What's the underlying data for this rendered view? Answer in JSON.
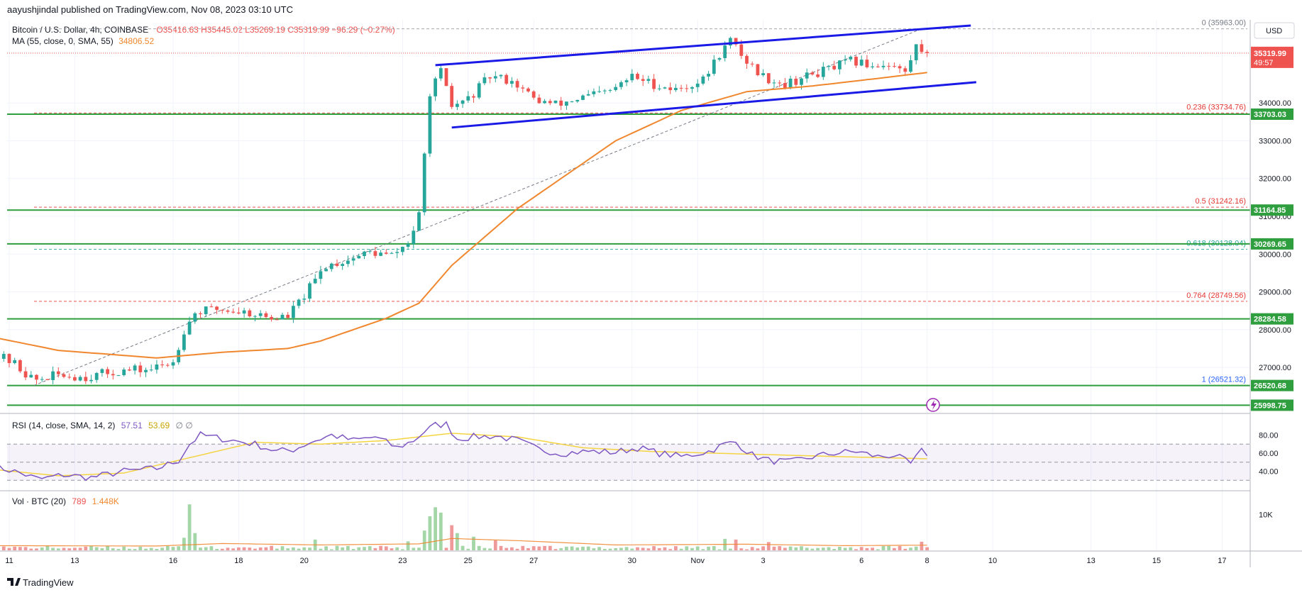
{
  "header": {
    "published": "aayushjindal published on TradingView.com, Nov 08, 2023 03:10 UTC"
  },
  "legend": {
    "symbol": "Bitcoin / U.S. Dollar, 4h, COINBASE",
    "ohlc": "O35416.63 H35445.02 L35269.19 C35319.99 −96.29 (−0.27%)",
    "ma_label": "MA (55, close, 0, SMA, 55)",
    "ma_value": "34806.52",
    "rsi_label": "RSI (14, close, SMA, 14, 2)",
    "rsi_value": "57.51",
    "rsi_sma_value": "53.69",
    "rsi_extra": "∅ ∅",
    "vol_label": "Vol · BTC (20)",
    "vol_value": "789",
    "vol_ma_value": "1.448K"
  },
  "colors": {
    "up": "#26a69a",
    "down": "#ef5350",
    "up_vol": "#a5d6a7",
    "down_vol": "#ef9a9a",
    "ma": "#f0872e",
    "channel": "#1a1ae6",
    "support": "#2e9e3e",
    "fib_red": "#e53935",
    "fib_green": "#26a69a",
    "fib_blue": "#2962ff",
    "fib_gray": "#787b86",
    "rsi": "#7e57c2",
    "rsi_sma": "#f5d442",
    "price_tag": "#ef5350"
  },
  "footer": {
    "brand": "TradingView"
  },
  "chart_data": {
    "type": "candlestick",
    "symbol": "Bitcoin / U.S. Dollar",
    "interval": "4h",
    "exchange": "COINBASE",
    "currency": "USD",
    "y_ticks": [
      27000,
      28000,
      29000,
      30000,
      31000,
      32000,
      33000,
      34000
    ],
    "y_tick_labels": [
      "27000.00",
      "28000.00",
      "29000.00",
      "30000.00",
      "31000.00",
      "32000.00",
      "33000.00",
      "34000.00"
    ],
    "ylim": [
      25800,
      36200
    ],
    "x_tick_labels": [
      "11",
      "13",
      "16",
      "18",
      "20",
      "23",
      "25",
      "27",
      "30",
      "Nov",
      "3",
      "6",
      "8",
      "10",
      "13",
      "15",
      "17"
    ],
    "x_tick_dates": [
      "2023-10-11",
      "2023-10-13",
      "2023-10-16",
      "2023-10-18",
      "2023-10-20",
      "2023-10-23",
      "2023-10-25",
      "2023-10-27",
      "2023-10-30",
      "2023-11-01",
      "2023-11-03",
      "2023-11-06",
      "2023-11-08",
      "2023-11-10",
      "2023-11-13",
      "2023-11-15",
      "2023-11-17"
    ],
    "price_path": [
      [
        "2023-10-10 12:00",
        27400
      ],
      [
        "2023-10-11 06:00",
        27150
      ],
      [
        "2023-10-11 22:00",
        26650
      ],
      [
        "2023-10-12 16:00",
        26800
      ],
      [
        "2023-10-13 12:00",
        26750
      ],
      [
        "2023-10-14 12:00",
        26900
      ],
      [
        "2023-10-15 12:00",
        26950
      ],
      [
        "2023-10-16 04:00",
        27150
      ],
      [
        "2023-10-16 12:00",
        28000
      ],
      [
        "2023-10-16 20:00",
        28450
      ],
      [
        "2023-10-17 12:00",
        28550
      ],
      [
        "2023-10-18 12:00",
        28450
      ],
      [
        "2023-10-19 04:00",
        28300
      ],
      [
        "2023-10-19 16:00",
        28350
      ],
      [
        "2023-10-20 04:00",
        28900
      ],
      [
        "2023-10-20 20:00",
        29700
      ],
      [
        "2023-10-21 12:00",
        29850
      ],
      [
        "2023-10-22 04:00",
        30050
      ],
      [
        "2023-10-22 20:00",
        29950
      ],
      [
        "2023-10-23 08:00",
        30300
      ],
      [
        "2023-10-23 16:00",
        31000
      ],
      [
        "2023-10-23 20:00",
        32600
      ],
      [
        "2023-10-24 00:00",
        34300
      ],
      [
        "2023-10-24 08:00",
        34800
      ],
      [
        "2023-10-24 16:00",
        33900
      ],
      [
        "2023-10-25 04:00",
        34100
      ],
      [
        "2023-10-25 20:00",
        34700
      ],
      [
        "2023-10-26 12:00",
        34600
      ],
      [
        "2023-10-27 04:00",
        34100
      ],
      [
        "2023-10-27 20:00",
        33950
      ],
      [
        "2023-10-28 16:00",
        34150
      ],
      [
        "2023-10-29 12:00",
        34300
      ],
      [
        "2023-10-30 04:00",
        34700
      ],
      [
        "2023-10-30 20:00",
        34500
      ],
      [
        "2023-10-31 12:00",
        34350
      ],
      [
        "2023-11-01 08:00",
        34600
      ],
      [
        "2023-11-01 20:00",
        35300
      ],
      [
        "2023-11-02 04:00",
        35650
      ],
      [
        "2023-11-02 16:00",
        35100
      ],
      [
        "2023-11-03 04:00",
        34700
      ],
      [
        "2023-11-03 20:00",
        34500
      ],
      [
        "2023-11-04 12:00",
        34700
      ],
      [
        "2023-11-05 04:00",
        34900
      ],
      [
        "2023-11-05 20:00",
        35100
      ],
      [
        "2023-11-06 12:00",
        35000
      ],
      [
        "2023-11-07 00:00",
        35050
      ],
      [
        "2023-11-07 12:00",
        34800
      ],
      [
        "2023-11-07 20:00",
        35500
      ],
      [
        "2023-11-08 00:00",
        35416.63
      ],
      [
        "2023-11-08 03:10",
        35319.99
      ]
    ],
    "ma_path": [
      [
        "2023-10-10 12:00",
        27800
      ],
      [
        "2023-10-12 12:00",
        27450
      ],
      [
        "2023-10-15 12:00",
        27250
      ],
      [
        "2023-10-17 12:00",
        27400
      ],
      [
        "2023-10-19 12:00",
        27500
      ],
      [
        "2023-10-20 12:00",
        27700
      ],
      [
        "2023-10-22 12:00",
        28300
      ],
      [
        "2023-10-23 12:00",
        28700
      ],
      [
        "2023-10-24 12:00",
        29700
      ],
      [
        "2023-10-26 12:00",
        31200
      ],
      [
        "2023-10-29 12:00",
        33000
      ],
      [
        "2023-10-31 12:00",
        33800
      ],
      [
        "2023-11-02 12:00",
        34300
      ],
      [
        "2023-11-04 12:00",
        34450
      ],
      [
        "2023-11-06 12:00",
        34650
      ],
      [
        "2023-11-08 00:00",
        34806.52
      ]
    ],
    "fib_levels": [
      {
        "label": "0 (35963.00)",
        "value": 35963.0
      },
      {
        "label": "0.236 (33734.76)",
        "value": 33734.76
      },
      {
        "label": "0.5 (31242.16)",
        "value": 31242.16
      },
      {
        "label": "0.618 (30128.04)",
        "value": 30128.04
      },
      {
        "label": "0.764 (28749.56)",
        "value": 28749.56
      },
      {
        "label": "1 (26521.32)",
        "value": 26521.32
      }
    ],
    "support_levels": [
      {
        "label": "33703.03",
        "value": 33703.03
      },
      {
        "label": "31164.85",
        "value": 31164.85
      },
      {
        "label": "30269.65",
        "value": 30269.65
      },
      {
        "label": "28284.58",
        "value": 28284.58
      },
      {
        "label": "26520.68",
        "value": 26520.68
      },
      {
        "label": "25998.75",
        "value": 25998.75
      }
    ],
    "last_price": {
      "label": "35319.99",
      "value": 35319.99,
      "countdown": "49:57"
    },
    "channel": {
      "upper": [
        [
          "2023-10-24 00:00",
          35000
        ],
        [
          "2023-11-09 08:00",
          36050
        ]
      ],
      "lower": [
        [
          "2023-10-24 12:00",
          33350
        ],
        [
          "2023-11-09 12:00",
          34550
        ]
      ]
    },
    "rsi": {
      "ticks": [
        "40.00",
        "60.00",
        "80.00"
      ],
      "tick_values": [
        40,
        60,
        80
      ],
      "band": [
        30,
        70
      ],
      "ylim": [
        20,
        100
      ],
      "path": [
        [
          "2023-10-10 12:00",
          46
        ],
        [
          "2023-10-11 06:00",
          39
        ],
        [
          "2023-10-11 22:00",
          31
        ],
        [
          "2023-10-12 16:00",
          36
        ],
        [
          "2023-10-13 12:00",
          33
        ],
        [
          "2023-10-14 12:00",
          40
        ],
        [
          "2023-10-15 12:00",
          43
        ],
        [
          "2023-10-16 04:00",
          52
        ],
        [
          "2023-10-16 12:00",
          70
        ],
        [
          "2023-10-16 20:00",
          80
        ],
        [
          "2023-10-17 12:00",
          76
        ],
        [
          "2023-10-18 12:00",
          70
        ],
        [
          "2023-10-19 04:00",
          62
        ],
        [
          "2023-10-19 16:00",
          64
        ],
        [
          "2023-10-20 04:00",
          72
        ],
        [
          "2023-10-20 20:00",
          80
        ],
        [
          "2023-10-21 12:00",
          74
        ],
        [
          "2023-10-22 04:00",
          78
        ],
        [
          "2023-10-22 20:00",
          66
        ],
        [
          "2023-10-23 08:00",
          74
        ],
        [
          "2023-10-23 16:00",
          84
        ],
        [
          "2023-10-24 00:00",
          91
        ],
        [
          "2023-10-24 08:00",
          92
        ],
        [
          "2023-10-24 16:00",
          76
        ],
        [
          "2023-10-25 04:00",
          78
        ],
        [
          "2023-10-25 20:00",
          79
        ],
        [
          "2023-10-26 12:00",
          74
        ],
        [
          "2023-10-27 04:00",
          64
        ],
        [
          "2023-10-27 20:00",
          60
        ],
        [
          "2023-10-28 16:00",
          62
        ],
        [
          "2023-10-29 12:00",
          61
        ],
        [
          "2023-10-30 04:00",
          66
        ],
        [
          "2023-10-30 20:00",
          60
        ],
        [
          "2023-10-31 12:00",
          56
        ],
        [
          "2023-11-01 08:00",
          62
        ],
        [
          "2023-11-01 20:00",
          70
        ],
        [
          "2023-11-02 04:00",
          72
        ],
        [
          "2023-11-02 16:00",
          58
        ],
        [
          "2023-11-03 04:00",
          52
        ],
        [
          "2023-11-03 20:00",
          50
        ],
        [
          "2023-11-04 12:00",
          56
        ],
        [
          "2023-11-05 04:00",
          60
        ],
        [
          "2023-11-05 20:00",
          62
        ],
        [
          "2023-11-06 12:00",
          56
        ],
        [
          "2023-11-07 00:00",
          58
        ],
        [
          "2023-11-07 12:00",
          48
        ],
        [
          "2023-11-07 20:00",
          62
        ],
        [
          "2023-11-08 03:10",
          57.51
        ]
      ],
      "sma_path": [
        [
          "2023-10-10 12:00",
          42
        ],
        [
          "2023-10-12 12:00",
          35
        ],
        [
          "2023-10-14 12:00",
          38
        ],
        [
          "2023-10-16 12:00",
          55
        ],
        [
          "2023-10-18 12:00",
          72
        ],
        [
          "2023-10-20 12:00",
          70
        ],
        [
          "2023-10-22 12:00",
          74
        ],
        [
          "2023-10-24 12:00",
          82
        ],
        [
          "2023-10-26 12:00",
          78
        ],
        [
          "2023-10-28 12:00",
          66
        ],
        [
          "2023-10-30 12:00",
          62
        ],
        [
          "2023-11-01 12:00",
          60
        ],
        [
          "2023-11-03 12:00",
          58
        ],
        [
          "2023-11-05 12:00",
          56
        ],
        [
          "2023-11-08 03:10",
          53.69
        ]
      ]
    },
    "volume": {
      "ticks": [
        "10K"
      ],
      "tick_values": [
        10000
      ],
      "ylim": [
        0,
        16000
      ],
      "spikes": [
        [
          "2023-10-11 06:00",
          2600
        ],
        [
          "2023-10-16 08:00",
          3500
        ],
        [
          "2023-10-16 12:00",
          12800
        ],
        [
          "2023-10-16 16:00",
          4800
        ],
        [
          "2023-10-20 08:00",
          3000
        ],
        [
          "2023-10-23 04:00",
          2500
        ],
        [
          "2023-10-23 16:00",
          5500
        ],
        [
          "2023-10-23 20:00",
          9500
        ],
        [
          "2023-10-24 00:00",
          12000
        ],
        [
          "2023-10-24 04:00",
          10500
        ],
        [
          "2023-10-24 12:00",
          7000
        ],
        [
          "2023-10-24 16:00",
          4800
        ],
        [
          "2023-10-25 04:00",
          3800
        ],
        [
          "2023-10-25 20:00",
          2800
        ],
        [
          "2023-11-01 20:00",
          3200
        ],
        [
          "2023-11-02 04:00",
          3000
        ],
        [
          "2023-11-03 04:00",
          2300
        ],
        [
          "2023-11-07 20:00",
          2400
        ]
      ],
      "base": 900,
      "ma_path": [
        [
          "2023-10-10 12:00",
          1300
        ],
        [
          "2023-10-15 12:00",
          1200
        ],
        [
          "2023-10-17 12:00",
          1900
        ],
        [
          "2023-10-20 12:00",
          1500
        ],
        [
          "2023-10-23 12:00",
          1800
        ],
        [
          "2023-10-24 12:00",
          3300
        ],
        [
          "2023-10-26 12:00",
          2700
        ],
        [
          "2023-10-29 12:00",
          1500
        ],
        [
          "2023-11-02 12:00",
          1700
        ],
        [
          "2023-11-05 12:00",
          1300
        ],
        [
          "2023-11-08 03:10",
          1448
        ]
      ]
    }
  }
}
